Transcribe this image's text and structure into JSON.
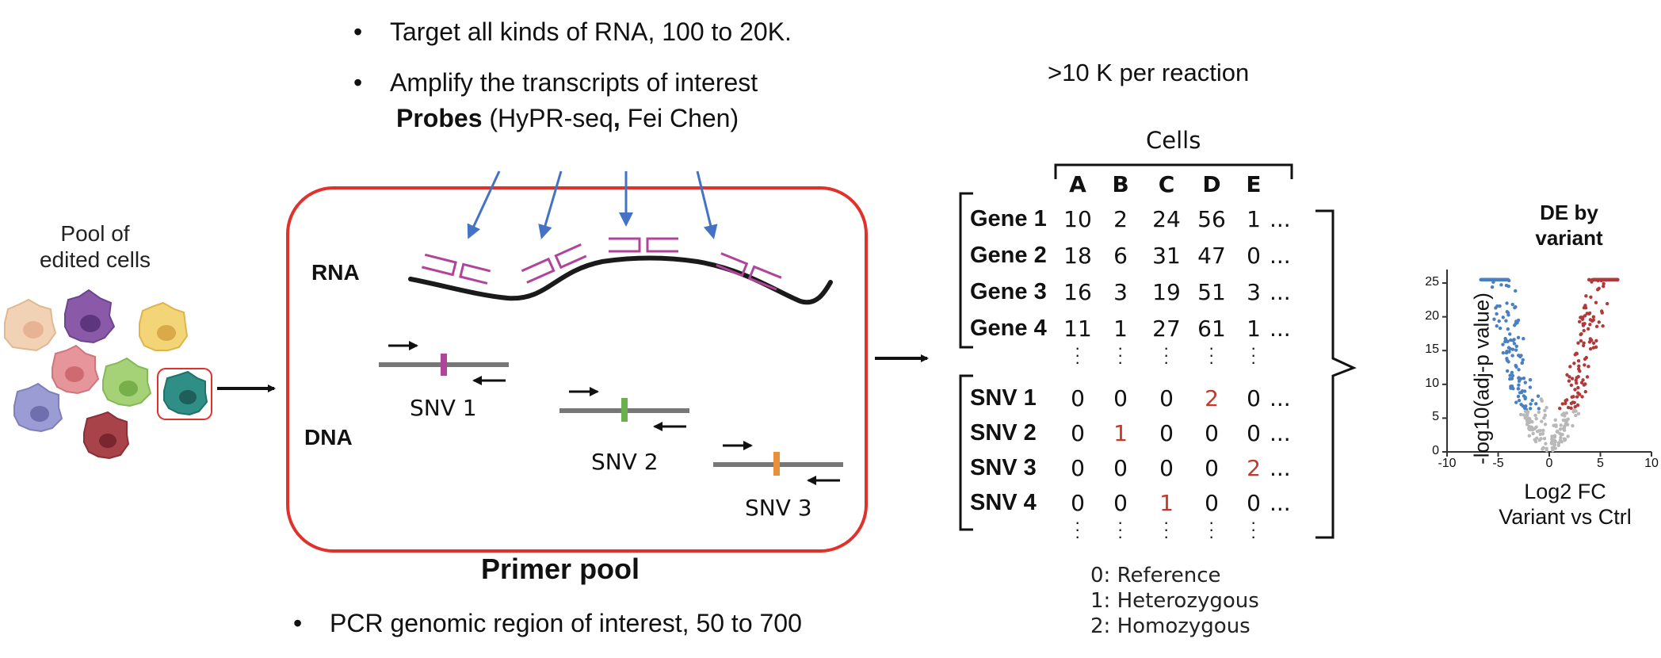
{
  "top_bullets": [
    "Target all kinds of RNA, 100 to 20K.",
    "Amplify the transcripts of interest"
  ],
  "probes": {
    "bold": "Probes",
    "rest": " (HyPR-seq",
    "comma": ",",
    "tail": " Fei Chen)"
  },
  "bottom_bullet": "PCR genomic region of interest, 50 to 700",
  "pool_label_line1": "Pool of",
  "pool_label_line2": "edited cells",
  "rna_label": "RNA",
  "dna_label": "DNA",
  "snv_labels": [
    "SNV 1",
    "SNV 2",
    "SNV 3"
  ],
  "primer_pool_label": "Primer pool",
  "per_reaction": ">10 K per reaction",
  "cells_label": "Cells",
  "matrix": {
    "columns": [
      "A",
      "B",
      "C",
      "D",
      "E"
    ],
    "genes": [
      {
        "name": "Gene 1",
        "values": [
          "10",
          "2",
          "24",
          "56",
          "1"
        ]
      },
      {
        "name": "Gene 2",
        "values": [
          "18",
          "6",
          "31",
          "47",
          "0"
        ]
      },
      {
        "name": "Gene 3",
        "values": [
          "16",
          "3",
          "19",
          "51",
          "3"
        ]
      },
      {
        "name": "Gene 4",
        "values": [
          "11",
          "1",
          "27",
          "61",
          "1"
        ]
      }
    ],
    "snvs": [
      {
        "name": "SNV 1",
        "values": [
          "0",
          "0",
          "0",
          "2",
          "0"
        ]
      },
      {
        "name": "SNV 2",
        "values": [
          "0",
          "1",
          "0",
          "0",
          "0"
        ]
      },
      {
        "name": "SNV 3",
        "values": [
          "0",
          "0",
          "0",
          "0",
          "2"
        ]
      },
      {
        "name": "SNV 4",
        "values": [
          "0",
          "0",
          "1",
          "0",
          "0"
        ]
      }
    ],
    "ellipsis": "..."
  },
  "legend": [
    "0: Reference",
    "1: Heterozygous",
    "2: Homozygous"
  ],
  "volcano": {
    "title_line1": "DE by",
    "title_line2": "variant",
    "ylabel": "-log10(adj-p value)",
    "xlabel_line1": "Log2 FC",
    "xlabel_line2": "Variant vs Ctrl",
    "xticks": [
      "-10",
      "-5",
      "0",
      "5",
      "10"
    ],
    "yticks": [
      "0",
      "5",
      "10",
      "15",
      "20",
      "25"
    ],
    "xlim": [
      -10,
      10
    ],
    "ylim": [
      0,
      27
    ]
  },
  "colors": {
    "frame_red": "#e0312b",
    "probe_magenta": "#b0449a",
    "arrow_blue": "#4472c4",
    "snv1_mark": "#b0449a",
    "snv2_mark": "#6ab04c",
    "snv3_mark": "#e8903a",
    "variant_red": "#c0392b",
    "volcano_blue": "#4a7fc1",
    "volcano_red": "#b03a3a",
    "volcano_grey": "#b8b8b8"
  }
}
